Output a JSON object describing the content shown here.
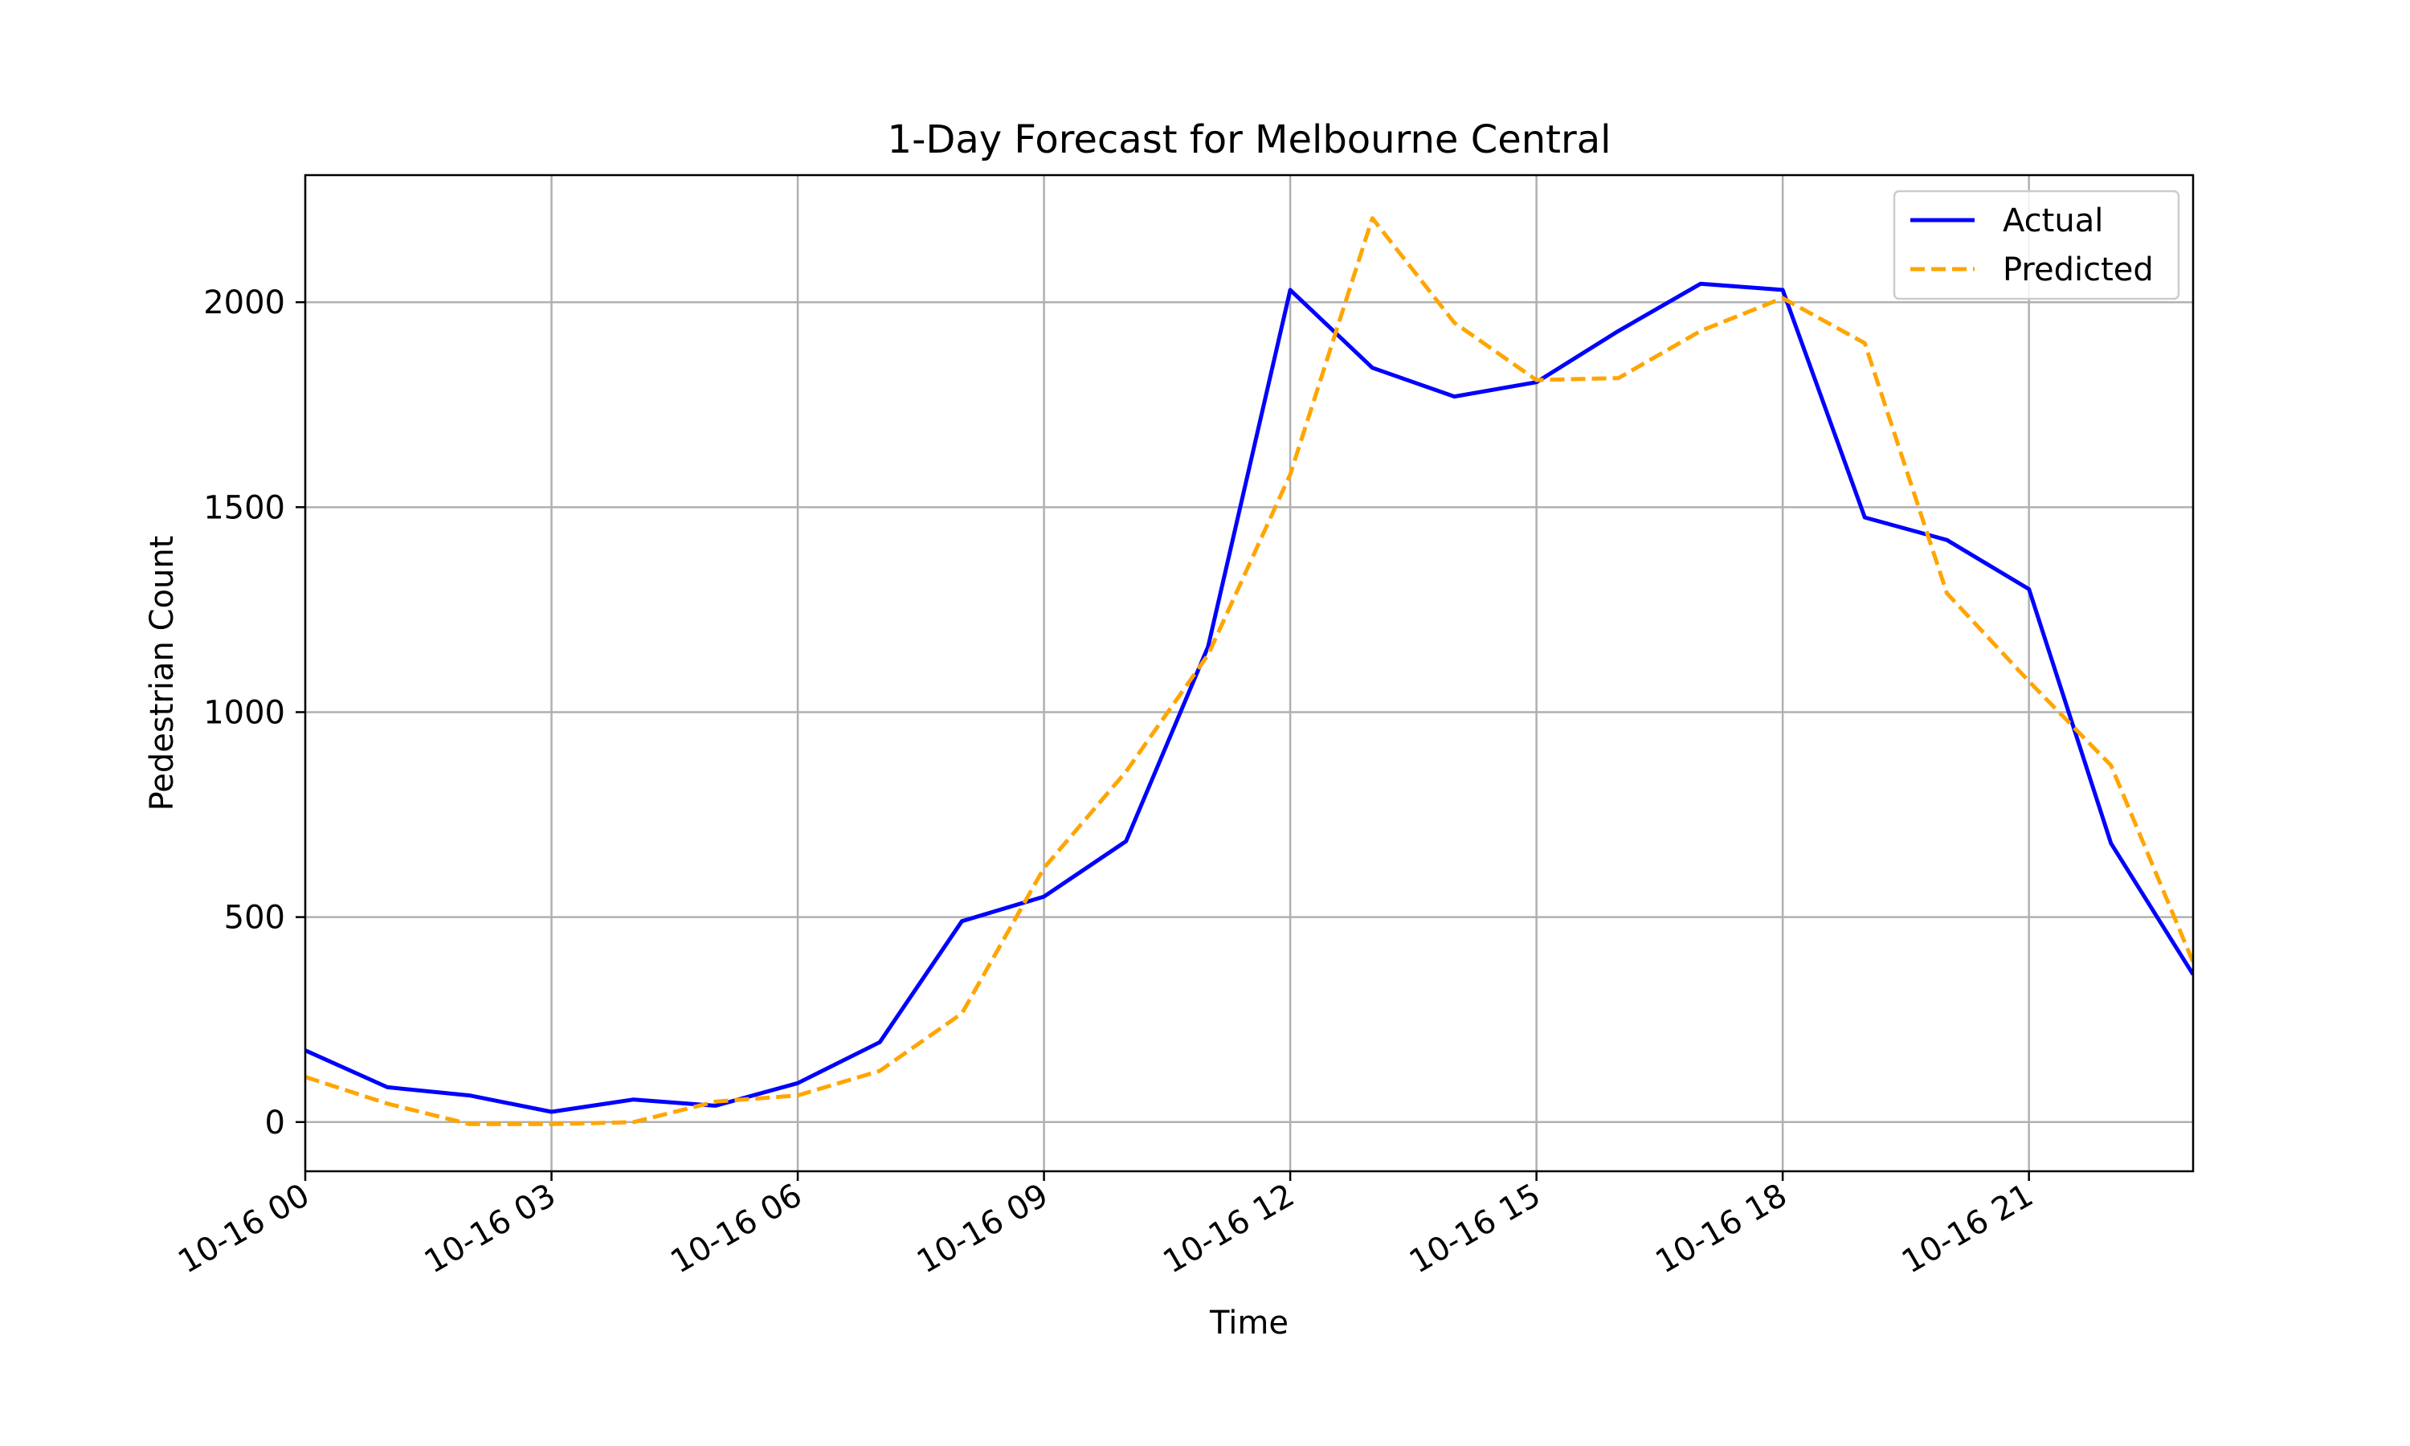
{
  "chart_data": {
    "type": "line",
    "title": "1-Day Forecast for Melbourne Central",
    "xlabel": "Time",
    "ylabel": "Pedestrian Count",
    "x": [
      "10-16 00",
      "10-16 01",
      "10-16 02",
      "10-16 03",
      "10-16 04",
      "10-16 05",
      "10-16 06",
      "10-16 07",
      "10-16 08",
      "10-16 09",
      "10-16 10",
      "10-16 11",
      "10-16 12",
      "10-16 13",
      "10-16 14",
      "10-16 15",
      "10-16 16",
      "10-16 17",
      "10-16 18",
      "10-16 19",
      "10-16 20",
      "10-16 21",
      "10-16 22",
      "10-16 23"
    ],
    "xticks": [
      "10-16 00",
      "10-16 03",
      "10-16 06",
      "10-16 09",
      "10-16 12",
      "10-16 15",
      "10-16 18",
      "10-16 21"
    ],
    "yticks": [
      "0",
      "500",
      "1000",
      "1500",
      "2000"
    ],
    "ylim": [
      -120,
      2310
    ],
    "grid": true,
    "legend_position": "top-right",
    "series": [
      {
        "name": "Actual",
        "color": "#0000ff",
        "style": "solid",
        "values": [
          175,
          85,
          65,
          25,
          55,
          40,
          95,
          195,
          490,
          550,
          685,
          1160,
          2030,
          1840,
          1770,
          1805,
          1930,
          2045,
          2030,
          1475,
          1420,
          1300,
          680,
          360
        ]
      },
      {
        "name": "Predicted",
        "color": "#ffa500",
        "style": "dashed",
        "values": [
          110,
          45,
          -5,
          -5,
          0,
          50,
          65,
          125,
          265,
          620,
          855,
          1140,
          1580,
          2205,
          1950,
          1810,
          1815,
          1930,
          2010,
          1900,
          1290,
          1075,
          870,
          390
        ]
      }
    ]
  }
}
